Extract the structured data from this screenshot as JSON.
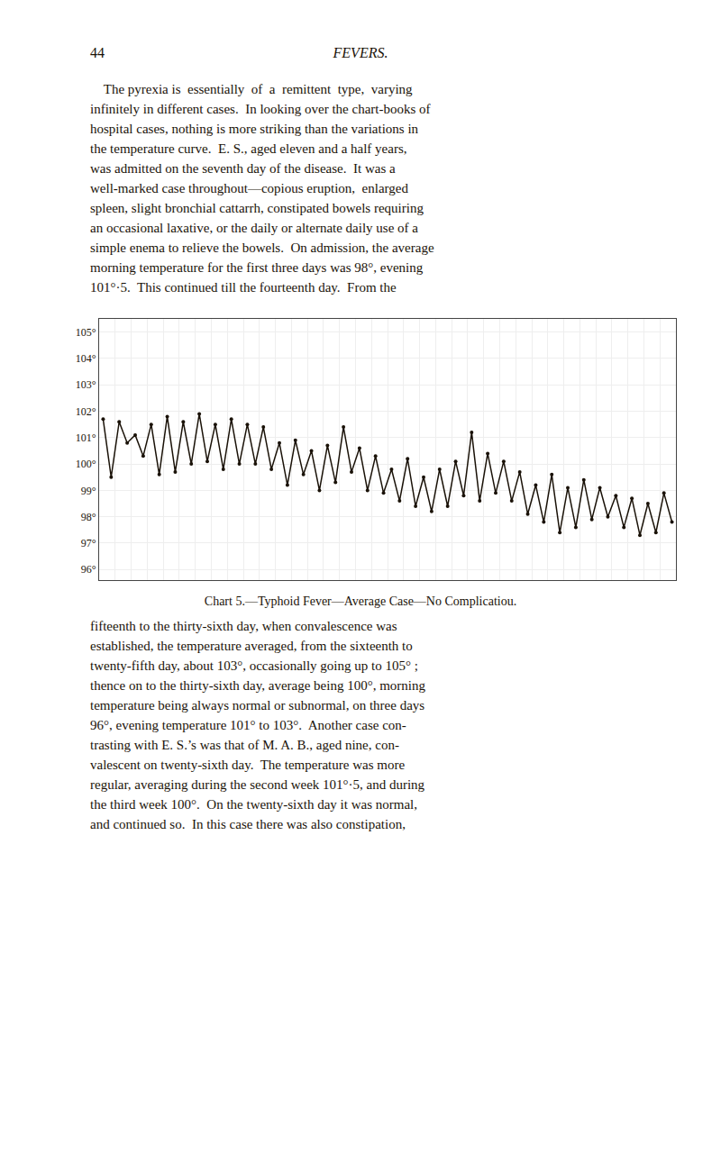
{
  "page_number": "44",
  "section_title": "FEVERS.",
  "paragraphs": [
    [
      "    The pyrexia is  essentially  of  a  remittent  type,  varying",
      "infinitely in different cases.  In looking over the chart-books of",
      "hospital cases, nothing is more striking than the variations in",
      "the temperature curve.  E. S., aged eleven and a half years,",
      "was admitted on the seventh day of the disease.  It was a",
      "well-marked case throughout—copious eruption,  enlarged",
      "spleen, slight bronchial cattarrh, constipated bowels requiring",
      "an occasional laxative, or the daily or alternate daily use of a",
      "simple enema to relieve the bowels.  On admission, the average",
      "morning temperature for the first three days was 98°, evening",
      "101°·5.  This continued till the fourteenth day.  From the"
    ],
    [
      "fifteenth to the thirty-sixth day, when convalescence was",
      "established, the temperature averaged, from the sixteenth to",
      "twenty-fifth day, about 103°, occasionally going up to 105° ;",
      "thence on to the thirty-sixth day, average being 100°, morning",
      "temperature being always normal or subnormal, on three days",
      "96°, evening temperature 101° to 103°.  Another case con-",
      "trasting with E. S.’s was that of M. A. B., aged nine, con-",
      "valescent on twenty-sixth day.  The temperature was more",
      "regular, averaging during the second week 101°·5, and during",
      "the third week 100°.  On the twenty-sixth day it was normal,",
      "and continued so.  In this case there was also constipation,"
    ]
  ],
  "chart_data": {
    "type": "line",
    "title": "Chart 5.—Typhoid Fever—Average Case—No Complicatiou.",
    "values": [
      101.7,
      99.5,
      101.6,
      100.8,
      101.1,
      100.3,
      101.5,
      99.6,
      101.8,
      99.7,
      101.6,
      100.0,
      101.9,
      100.1,
      101.5,
      99.8,
      101.7,
      100.0,
      101.5,
      100.0,
      101.4,
      99.8,
      100.8,
      99.2,
      100.9,
      99.6,
      100.5,
      99.0,
      100.7,
      99.3,
      101.4,
      99.7,
      100.6,
      99.0,
      100.3,
      98.9,
      99.8,
      98.6,
      100.2,
      98.4,
      99.5,
      98.2,
      99.8,
      98.4,
      100.1,
      98.8,
      101.2,
      98.6,
      100.4,
      98.9,
      100.1,
      98.6,
      99.7,
      98.1,
      99.2,
      97.8,
      99.6,
      97.4,
      99.1,
      97.6,
      99.4,
      97.9,
      99.1,
      98.0,
      98.8,
      97.6,
      98.7,
      97.3,
      98.5,
      97.4,
      98.9,
      97.8
    ],
    "color": "#1a1208",
    "marker": "circle",
    "ylim": [
      95.6,
      105.5
    ],
    "yticks": [
      {
        "value": 96,
        "label": "96°"
      },
      {
        "value": 97,
        "label": "97°"
      },
      {
        "value": 98,
        "label": "98°"
      },
      {
        "value": 99,
        "label": "99°"
      },
      {
        "value": 100,
        "label": "100°"
      },
      {
        "value": 101,
        "label": "101°"
      },
      {
        "value": 102,
        "label": "102°"
      },
      {
        "value": 103,
        "label": "103°"
      },
      {
        "value": 104,
        "label": "104°"
      },
      {
        "value": 105,
        "label": "105°"
      }
    ],
    "grid": true,
    "tick_labels": "y"
  }
}
